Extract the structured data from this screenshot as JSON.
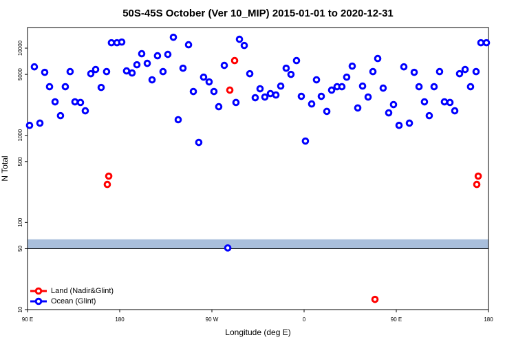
{
  "chart_data": {
    "type": "scatter",
    "title": "50S-45S October (Ver 10_MIP)   2015-01-01 to 2020-12-31",
    "xlabel": "Longitude (deg E)",
    "ylabel": "N Total",
    "xlim": [
      90,
      540
    ],
    "xticks": [
      {
        "value": 90,
        "label": "90 E"
      },
      {
        "value": 180,
        "label": "180"
      },
      {
        "value": 270,
        "label": "90 W"
      },
      {
        "value": 360,
        "label": "0"
      },
      {
        "value": 450,
        "label": "90 E"
      },
      {
        "value": 540,
        "label": "180"
      }
    ],
    "ylim": [
      10,
      17250
    ],
    "ylog": true,
    "yticks": [
      10,
      50,
      100,
      500,
      1000,
      5000,
      10000
    ],
    "hline": 50,
    "band": [
      50,
      64
    ],
    "band_color": "#a9bfdc",
    "legend": "lower left",
    "series": [
      {
        "name": "Land (Nadir&Glint)",
        "color": "#ff0000",
        "x": [
          167.9,
          169.3,
          287.5,
          292.2,
          429.2,
          528.6,
          530.0
        ],
        "values": [
          273,
          340,
          3300,
          7200,
          13.1,
          273,
          340
        ]
      },
      {
        "name": "Ocean (Glint)",
        "color": "#0000ff",
        "x": [
          92,
          96.7,
          102.1,
          106.8,
          111.5,
          116.9,
          122.2,
          126.9,
          131.6,
          136.3,
          141.7,
          146.4,
          151.8,
          156.5,
          161.9,
          167.2,
          171.9,
          177.3,
          182,
          186.7,
          192.1,
          196.8,
          201.5,
          206.9,
          211.6,
          216.9,
          222.3,
          227,
          232.4,
          237.1,
          241.8,
          247.2,
          251.9,
          257.2,
          261.9,
          267.3,
          272,
          276.7,
          282.1,
          285.5,
          293.5,
          296.9,
          301.6,
          307,
          312.3,
          317,
          321.7,
          327.1,
          332.5,
          337.2,
          342.5,
          347.2,
          352.6,
          357.3,
          361.3,
          367.4,
          372.1,
          376.8,
          382.2,
          386.9,
          392.2,
          396.9,
          401.6,
          407,
          412.4,
          417.1,
          422.5,
          427.2,
          431.9,
          437.2,
          442.6,
          447.3,
          452.7,
          457.4,
          462.8,
          467.5,
          472.2,
          477.5,
          482.2,
          486.9,
          492.3,
          497,
          502.4,
          507.1,
          511.8,
          517.2,
          522.5,
          527.9,
          532.6,
          538
        ],
        "values": [
          1300,
          6100,
          1380,
          5280,
          3610,
          2420,
          1680,
          3610,
          5380,
          2420,
          2380,
          1910,
          5090,
          5690,
          3540,
          5380,
          11540,
          11540,
          11750,
          5480,
          5190,
          6450,
          8630,
          6690,
          4330,
          8170,
          5380,
          8480,
          13340,
          1510,
          5890,
          10930,
          3180,
          828,
          4650,
          4100,
          3180,
          2130,
          6340,
          51,
          2380,
          12650,
          10730,
          5090,
          2700,
          3420,
          2750,
          3010,
          2900,
          3670,
          5890,
          5000,
          7200,
          2800,
          859,
          2290,
          4330,
          2800,
          1880,
          3300,
          3610,
          3610,
          4650,
          6220,
          2060,
          3670,
          2750,
          5380,
          7600,
          3480,
          1810,
          2250,
          1300,
          6100,
          1380,
          5280,
          3610,
          2420,
          1680,
          3610,
          5380,
          2420,
          2380,
          1910,
          5090,
          5690,
          3610,
          5380,
          11540,
          11540
        ]
      }
    ]
  }
}
